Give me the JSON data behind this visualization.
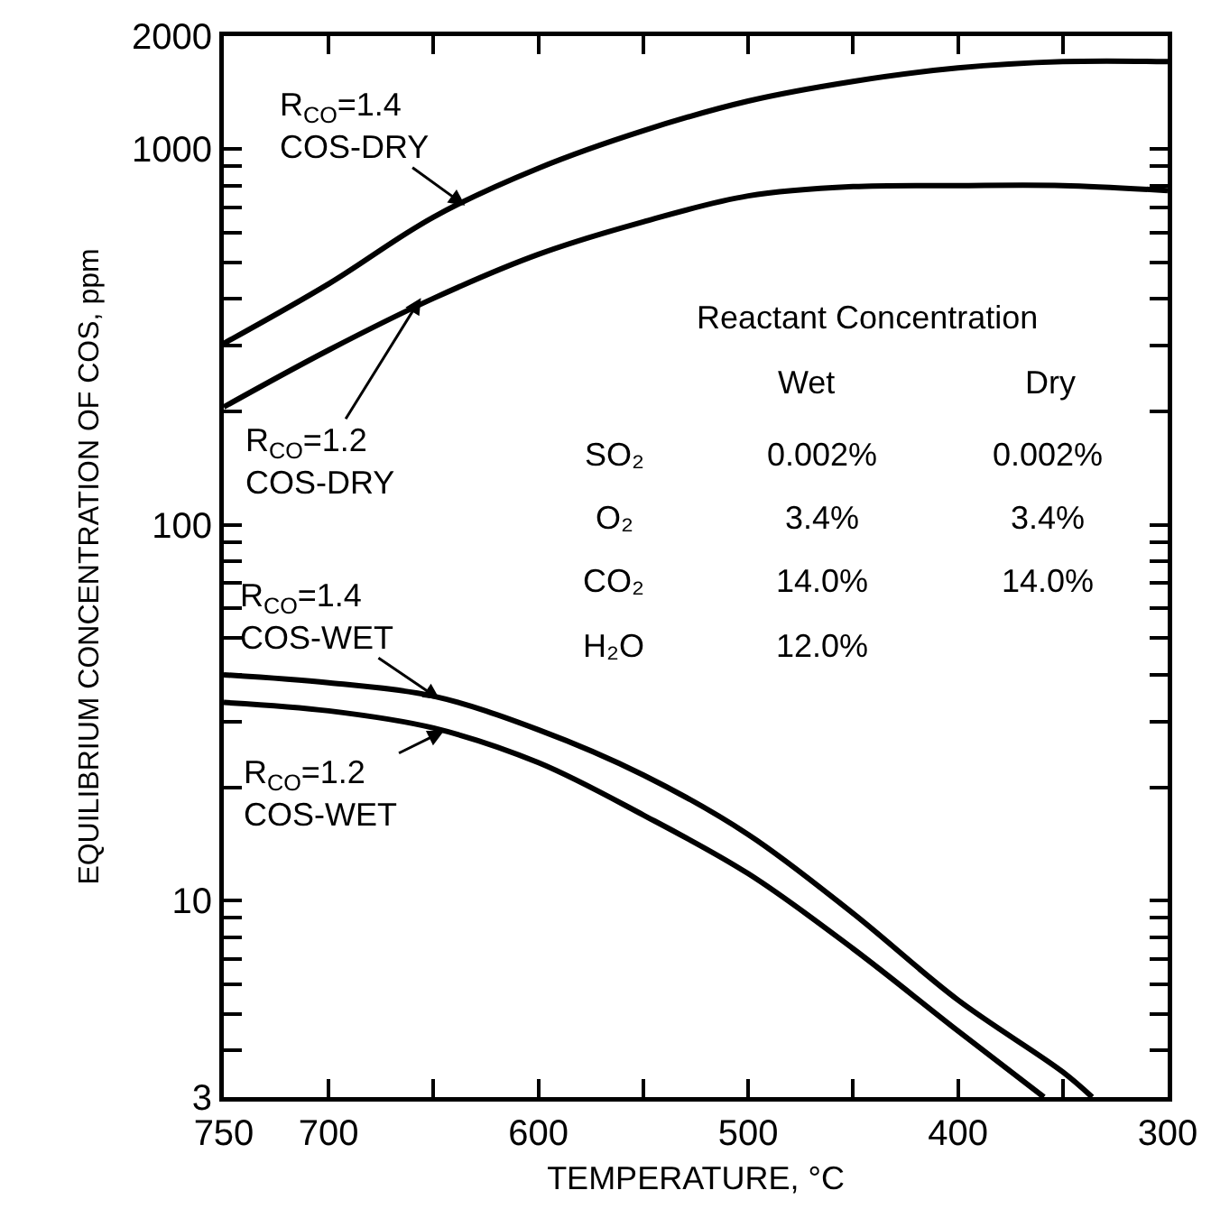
{
  "chart_data": {
    "type": "line",
    "xlabel": "TEMPERATURE, °C",
    "ylabel": "EQUILIBRIUM CONCENTRATION OF COS, ppm",
    "x": [
      750,
      700,
      650,
      600,
      550,
      500,
      450,
      400,
      350,
      300
    ],
    "series": [
      {
        "color": "#000000",
        "values": [
          304,
          438,
          660,
          890,
          1120,
          1343,
          1515,
          1645,
          1710,
          1710
        ]
      },
      {
        "color": "#000000",
        "values": [
          206,
          292,
          401,
          525,
          641,
          751,
          795,
          800,
          800,
          776
        ]
      },
      {
        "color": "#000000",
        "x": [
          750,
          700,
          650,
          600,
          550,
          500,
          450,
          400,
          350,
          336
        ],
        "values": [
          39.9,
          38,
          35,
          28.5,
          21.6,
          15,
          9.25,
          5.44,
          3.5,
          3
        ]
      },
      {
        "color": "#000000",
        "x": [
          750,
          700,
          650,
          600,
          550,
          500,
          450,
          400,
          359
        ],
        "values": [
          33.7,
          32,
          28.8,
          23.3,
          16.9,
          11.8,
          7.45,
          4.5,
          3
        ]
      }
    ],
    "log": "y",
    "xlim": [
      750,
      300
    ],
    "ylim": [
      3,
      2000
    ],
    "xticks": [
      750,
      700,
      {
        "value": 650,
        "label": null
      },
      600,
      {
        "value": 550,
        "label": null
      },
      500,
      {
        "value": 450,
        "label": null
      },
      400,
      {
        "value": 350,
        "label": null
      },
      300
    ],
    "yticks": [
      3,
      {
        "value": 4,
        "label": null
      },
      {
        "value": 5,
        "label": null
      },
      {
        "value": 6,
        "label": null
      },
      {
        "value": 7,
        "label": null
      },
      {
        "value": 8,
        "label": null
      },
      {
        "value": 9,
        "label": null
      },
      10,
      {
        "value": 20,
        "label": null
      },
      {
        "value": 30,
        "label": null
      },
      {
        "value": 40,
        "label": null
      },
      {
        "value": 50,
        "label": null
      },
      {
        "value": 60,
        "label": null
      },
      {
        "value": 70,
        "label": null
      },
      {
        "value": 80,
        "label": null
      },
      {
        "value": 90,
        "label": null
      },
      100,
      {
        "value": 200,
        "label": null
      },
      {
        "value": 300,
        "label": null
      },
      {
        "value": 400,
        "label": null
      },
      {
        "value": 500,
        "label": null
      },
      {
        "value": 600,
        "label": null
      },
      {
        "value": 700,
        "label": null
      },
      {
        "value": 800,
        "label": null
      },
      {
        "value": 900,
        "label": null
      },
      1000,
      2000
    ],
    "marker": "none",
    "line_style": "solid",
    "annotations": [
      {
        "text": "R$_{CO}$=1.4\nCOS-DRY",
        "x": 635,
        "y": 708
      },
      {
        "text": "R$_{CO}$=1.2\nCOS-DRY",
        "x": 656,
        "y": 402
      },
      {
        "text": "R$_{CO}$=1.4\nCOS-WET",
        "x": 647,
        "y": 34.3
      },
      {
        "text": "R$_{CO}$=1.2\nCOS-WET",
        "x": 645,
        "y": 28.3
      },
      "Reactant Concentration",
      "Wet",
      "Dry",
      "SO₂",
      "0.002%",
      "0.002%",
      "O₂",
      "3.4%",
      "3.4%",
      "CO₂",
      "14.0%",
      "14.0%",
      "H₂O",
      "12.0%"
    ]
  }
}
